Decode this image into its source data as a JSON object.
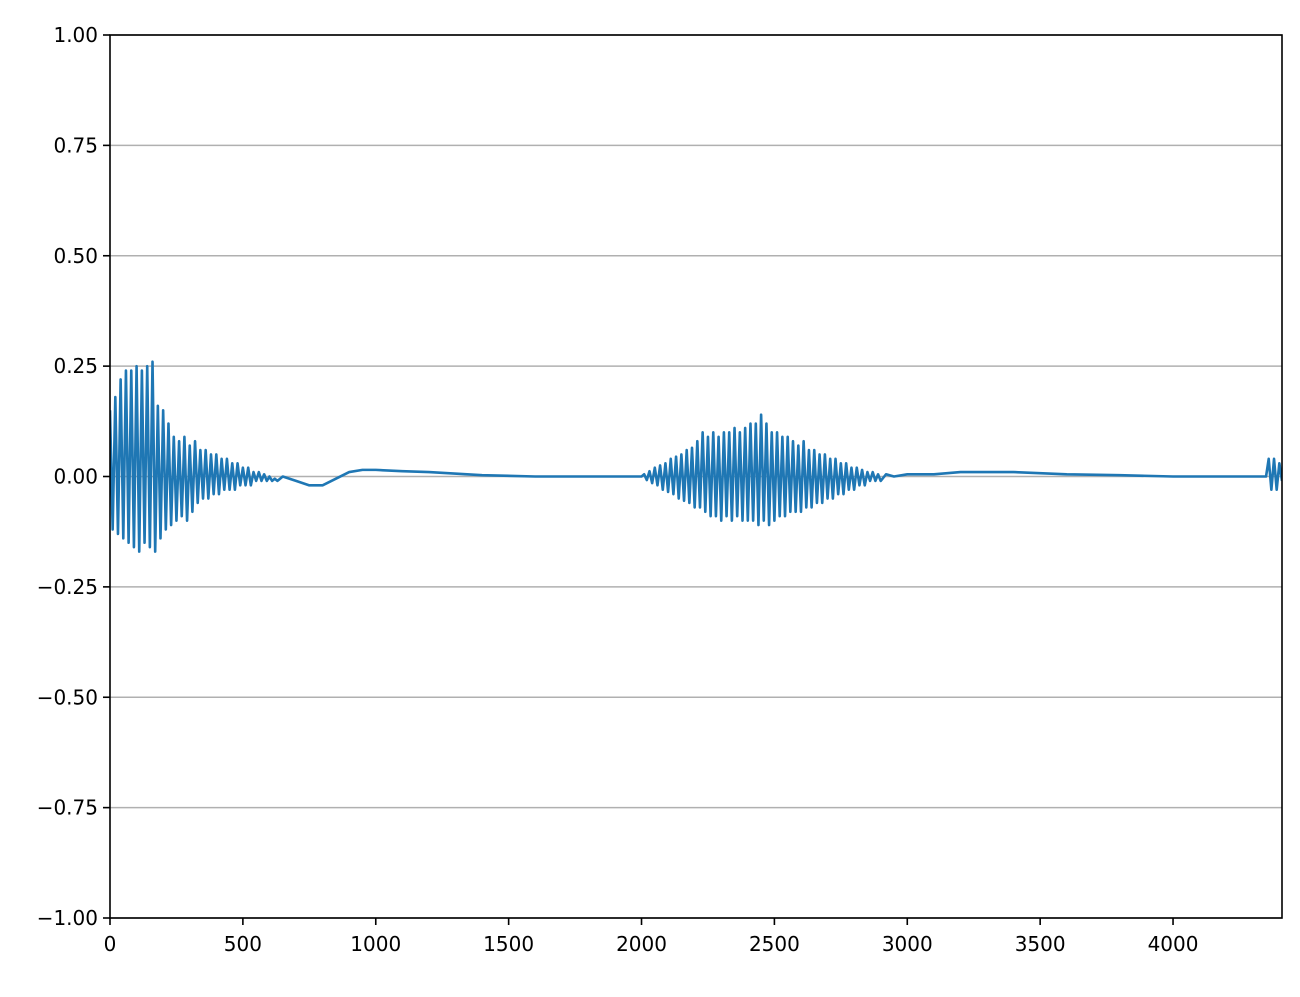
{
  "chart_data": {
    "type": "line",
    "color": "#1f77b4",
    "grid": true,
    "xlim": [
      0,
      4410
    ],
    "ylim": [
      -1,
      1
    ],
    "xticks": [
      0,
      500,
      1000,
      1500,
      2000,
      2500,
      3000,
      3500,
      4000
    ],
    "yticks": [
      {
        "value": -1,
        "label": "−1.00"
      },
      {
        "value": -0.75,
        "label": "−0.75"
      },
      {
        "value": -0.5,
        "label": "−0.50"
      },
      {
        "value": -0.25,
        "label": "−0.25"
      },
      {
        "value": 0,
        "label": "0.00"
      },
      {
        "value": 0.25,
        "label": "0.25"
      },
      {
        "value": 0.5,
        "label": "0.50"
      },
      {
        "value": 0.75,
        "label": "0.75"
      },
      {
        "value": 1,
        "label": "1.00"
      }
    ],
    "x": [
      0,
      10,
      20,
      30,
      40,
      50,
      60,
      70,
      80,
      90,
      100,
      110,
      120,
      130,
      140,
      150,
      160,
      170,
      180,
      190,
      200,
      210,
      220,
      230,
      240,
      250,
      260,
      270,
      280,
      290,
      300,
      310,
      320,
      330,
      340,
      350,
      360,
      370,
      380,
      390,
      400,
      410,
      420,
      430,
      440,
      450,
      460,
      470,
      480,
      490,
      500,
      510,
      520,
      530,
      540,
      550,
      560,
      570,
      580,
      590,
      600,
      610,
      620,
      630,
      640,
      650,
      700,
      750,
      800,
      850,
      900,
      950,
      1000,
      1100,
      1200,
      1400,
      1600,
      1800,
      2000,
      2010,
      2020,
      2030,
      2040,
      2050,
      2060,
      2070,
      2080,
      2090,
      2100,
      2110,
      2120,
      2130,
      2140,
      2150,
      2160,
      2170,
      2180,
      2190,
      2200,
      2210,
      2220,
      2230,
      2240,
      2250,
      2260,
      2270,
      2280,
      2290,
      2300,
      2310,
      2320,
      2330,
      2340,
      2350,
      2360,
      2370,
      2380,
      2390,
      2400,
      2410,
      2420,
      2430,
      2440,
      2450,
      2460,
      2470,
      2480,
      2490,
      2500,
      2510,
      2520,
      2530,
      2540,
      2550,
      2560,
      2570,
      2580,
      2590,
      2600,
      2610,
      2620,
      2630,
      2640,
      2650,
      2660,
      2670,
      2680,
      2690,
      2700,
      2710,
      2720,
      2730,
      2740,
      2750,
      2760,
      2770,
      2780,
      2790,
      2800,
      2810,
      2820,
      2830,
      2840,
      2850,
      2860,
      2870,
      2880,
      2890,
      2900,
      2920,
      2950,
      3000,
      3100,
      3200,
      3400,
      3600,
      3800,
      4000,
      4200,
      4350,
      4360,
      4370,
      4380,
      4390,
      4400,
      4410
    ],
    "values": [
      0.15,
      -0.12,
      0.18,
      -0.13,
      0.22,
      -0.14,
      0.24,
      -0.15,
      0.24,
      -0.16,
      0.25,
      -0.17,
      0.24,
      -0.15,
      0.25,
      -0.16,
      0.26,
      -0.17,
      0.16,
      -0.14,
      0.15,
      -0.12,
      0.12,
      -0.11,
      0.09,
      -0.1,
      0.08,
      -0.09,
      0.09,
      -0.1,
      0.07,
      -0.08,
      0.08,
      -0.06,
      0.06,
      -0.05,
      0.06,
      -0.05,
      0.05,
      -0.04,
      0.05,
      -0.04,
      0.04,
      -0.03,
      0.04,
      -0.03,
      0.03,
      -0.03,
      0.03,
      -0.02,
      0.02,
      -0.02,
      0.02,
      -0.02,
      0.01,
      -0.01,
      0.01,
      -0.01,
      0.005,
      -0.01,
      0.0,
      -0.01,
      -0.005,
      -0.01,
      -0.005,
      0.0,
      -0.01,
      -0.02,
      -0.02,
      -0.005,
      0.01,
      0.015,
      0.015,
      0.012,
      0.01,
      0.003,
      0.0,
      0.0,
      0.0,
      0.005,
      -0.008,
      0.012,
      -0.015,
      0.02,
      -0.02,
      0.025,
      -0.03,
      0.03,
      -0.035,
      0.04,
      -0.04,
      0.045,
      -0.05,
      0.05,
      -0.055,
      0.06,
      -0.06,
      0.065,
      -0.07,
      0.08,
      -0.07,
      0.1,
      -0.08,
      0.09,
      -0.09,
      0.1,
      -0.09,
      0.09,
      -0.1,
      0.1,
      -0.09,
      0.1,
      -0.1,
      0.11,
      -0.09,
      0.1,
      -0.1,
      0.11,
      -0.1,
      0.12,
      -0.1,
      0.12,
      -0.11,
      0.14,
      -0.1,
      0.12,
      -0.11,
      0.1,
      -0.1,
      0.1,
      -0.09,
      0.09,
      -0.09,
      0.09,
      -0.08,
      0.08,
      -0.08,
      0.07,
      -0.08,
      0.08,
      -0.07,
      0.06,
      -0.07,
      0.06,
      -0.06,
      0.05,
      -0.06,
      0.05,
      -0.05,
      0.04,
      -0.05,
      0.04,
      -0.04,
      0.03,
      -0.04,
      0.03,
      -0.03,
      0.02,
      -0.03,
      0.02,
      -0.02,
      0.015,
      -0.02,
      0.01,
      -0.01,
      0.01,
      -0.01,
      0.005,
      -0.01,
      0.005,
      0.0,
      0.005,
      0.005,
      0.01,
      0.01,
      0.005,
      0.003,
      0.0,
      0.0,
      0.0,
      0.04,
      -0.03,
      0.04,
      -0.03,
      0.03,
      -0.01
    ]
  }
}
